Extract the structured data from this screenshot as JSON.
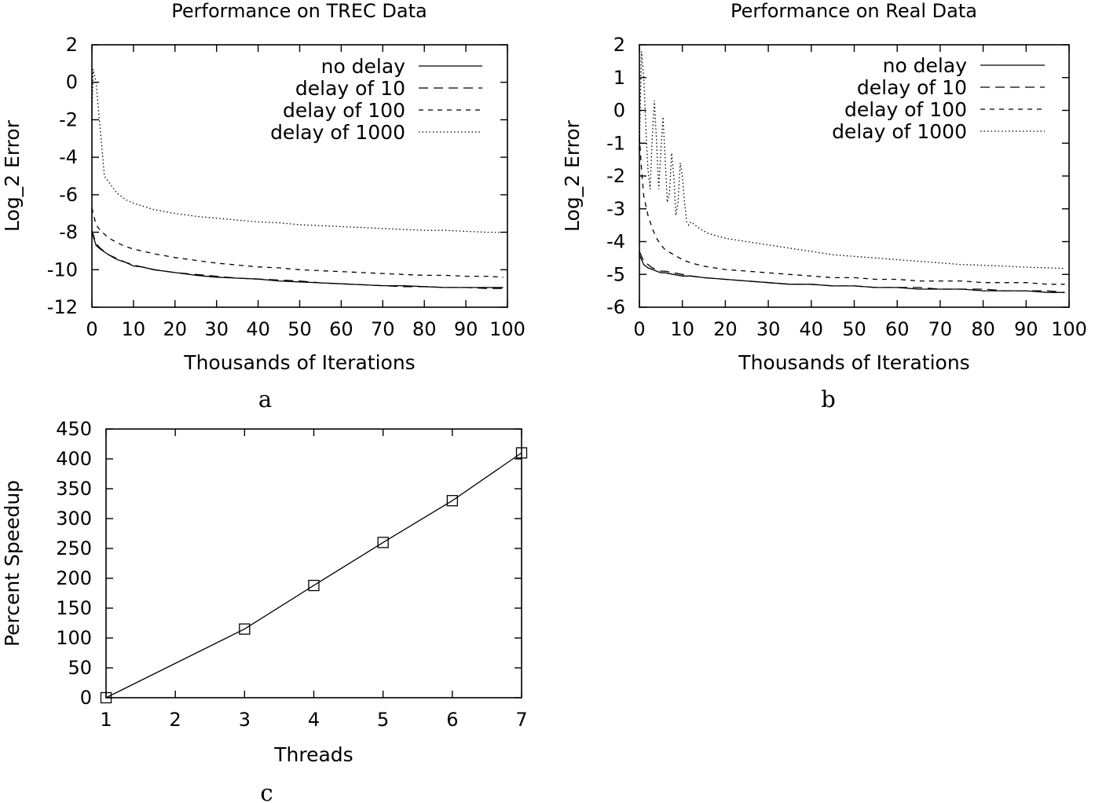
{
  "chart_data": [
    {
      "id": "a",
      "type": "line",
      "title": "Performance on TREC Data",
      "xlabel": "Thousands of Iterations",
      "ylabel": "Log_2 Error",
      "panel_letter": "a",
      "xlim": [
        0,
        100
      ],
      "ylim": [
        -12,
        2
      ],
      "xticks": [
        0,
        10,
        20,
        30,
        40,
        50,
        60,
        70,
        80,
        90,
        100
      ],
      "yticks": [
        -12,
        -10,
        -8,
        -6,
        -4,
        -2,
        0,
        2
      ],
      "grid": false,
      "legend_position": "top-right",
      "series": [
        {
          "name": "no delay",
          "dash": "solid",
          "x": [
            0,
            1,
            2,
            4,
            6,
            8,
            10,
            12,
            15,
            20,
            25,
            30,
            35,
            40,
            45,
            50,
            55,
            60,
            65,
            70,
            75,
            80,
            85,
            90,
            95,
            99
          ],
          "y": [
            -8.0,
            -8.7,
            -8.9,
            -9.2,
            -9.45,
            -9.6,
            -9.8,
            -9.85,
            -10.0,
            -10.15,
            -10.3,
            -10.4,
            -10.45,
            -10.5,
            -10.6,
            -10.65,
            -10.7,
            -10.75,
            -10.8,
            -10.85,
            -10.85,
            -10.9,
            -10.95,
            -10.95,
            -10.95,
            -10.95
          ]
        },
        {
          "name": "delay of 10",
          "dash": "long-dash",
          "x": [
            0,
            1,
            2,
            4,
            6,
            8,
            10,
            12,
            15,
            20,
            25,
            30,
            35,
            40,
            45,
            50,
            55,
            60,
            65,
            70,
            75,
            80,
            85,
            90,
            95,
            99
          ],
          "y": [
            -7.9,
            -8.6,
            -8.85,
            -9.2,
            -9.4,
            -9.6,
            -9.75,
            -9.85,
            -10.0,
            -10.15,
            -10.25,
            -10.35,
            -10.45,
            -10.5,
            -10.55,
            -10.6,
            -10.7,
            -10.75,
            -10.8,
            -10.85,
            -10.9,
            -10.9,
            -10.95,
            -10.95,
            -11.0,
            -11.0
          ]
        },
        {
          "name": "delay of 100",
          "dash": "short-dash",
          "x": [
            0,
            1,
            2,
            4,
            6,
            8,
            10,
            15,
            20,
            25,
            30,
            35,
            40,
            45,
            50,
            55,
            60,
            65,
            70,
            75,
            80,
            85,
            90,
            95,
            99
          ],
          "y": [
            -6.7,
            -7.6,
            -7.9,
            -8.3,
            -8.55,
            -8.75,
            -8.9,
            -9.15,
            -9.35,
            -9.5,
            -9.65,
            -9.75,
            -9.85,
            -9.9,
            -10.0,
            -10.05,
            -10.1,
            -10.15,
            -10.2,
            -10.25,
            -10.3,
            -10.3,
            -10.35,
            -10.35,
            -10.4
          ]
        },
        {
          "name": "delay of 1000",
          "dash": "dotted",
          "x": [
            0,
            0.3,
            1,
            2,
            3,
            4,
            6,
            8,
            10,
            15,
            20,
            25,
            30,
            35,
            40,
            45,
            50,
            55,
            60,
            65,
            70,
            75,
            80,
            85,
            90,
            95,
            99
          ],
          "y": [
            -2.0,
            0.7,
            0.0,
            -2.5,
            -5.0,
            -5.3,
            -5.9,
            -6.25,
            -6.45,
            -6.8,
            -7.0,
            -7.15,
            -7.25,
            -7.35,
            -7.45,
            -7.5,
            -7.6,
            -7.65,
            -7.7,
            -7.75,
            -7.8,
            -7.85,
            -7.9,
            -7.9,
            -7.95,
            -8.0,
            -8.0
          ]
        }
      ]
    },
    {
      "id": "b",
      "type": "line",
      "title": "Performance on Real Data",
      "xlabel": "Thousands of Iterations",
      "ylabel": "Log_2 Error",
      "panel_letter": "b",
      "xlim": [
        0,
        100
      ],
      "ylim": [
        -6,
        2
      ],
      "xticks": [
        0,
        10,
        20,
        30,
        40,
        50,
        60,
        70,
        80,
        90,
        100
      ],
      "yticks": [
        -6,
        -5,
        -4,
        -3,
        -2,
        -1,
        0,
        1,
        2
      ],
      "grid": false,
      "legend_position": "top-right",
      "series": [
        {
          "name": "no delay",
          "dash": "solid",
          "x": [
            0,
            1,
            2,
            3,
            4,
            5,
            6,
            8,
            10,
            12,
            15,
            20,
            25,
            30,
            35,
            40,
            45,
            50,
            55,
            60,
            65,
            70,
            75,
            80,
            85,
            90,
            95,
            99
          ],
          "y": [
            -4.4,
            -4.7,
            -4.8,
            -4.85,
            -4.9,
            -4.95,
            -4.95,
            -5.0,
            -5.05,
            -5.05,
            -5.1,
            -5.15,
            -5.2,
            -5.25,
            -5.3,
            -5.3,
            -5.35,
            -5.35,
            -5.4,
            -5.4,
            -5.45,
            -5.45,
            -5.45,
            -5.5,
            -5.5,
            -5.5,
            -5.55,
            -5.55
          ]
        },
        {
          "name": "delay of 10",
          "dash": "long-dash",
          "x": [
            0,
            1,
            2,
            3,
            4,
            5,
            6,
            8,
            10,
            12,
            15,
            20,
            25,
            30,
            35,
            40,
            45,
            50,
            55,
            60,
            65,
            70,
            75,
            80,
            85,
            90,
            95,
            99
          ],
          "y": [
            -4.3,
            -4.6,
            -4.7,
            -4.8,
            -4.85,
            -4.9,
            -4.9,
            -4.95,
            -5.0,
            -5.05,
            -5.1,
            -5.15,
            -5.2,
            -5.25,
            -5.3,
            -5.3,
            -5.35,
            -5.35,
            -5.4,
            -5.4,
            -5.4,
            -5.45,
            -5.45,
            -5.45,
            -5.5,
            -5.5,
            -5.5,
            -5.55
          ]
        },
        {
          "name": "delay of 100",
          "dash": "short-dash",
          "x": [
            0,
            0.5,
            1,
            2,
            3,
            4,
            5,
            6,
            8,
            10,
            12,
            15,
            20,
            25,
            30,
            35,
            40,
            45,
            50,
            55,
            60,
            65,
            70,
            75,
            80,
            85,
            90,
            95,
            99
          ],
          "y": [
            -0.8,
            -1.8,
            -2.6,
            -3.2,
            -3.6,
            -3.9,
            -4.1,
            -4.25,
            -4.4,
            -4.55,
            -4.65,
            -4.75,
            -4.85,
            -4.9,
            -4.95,
            -5.0,
            -5.05,
            -5.1,
            -5.1,
            -5.15,
            -5.15,
            -5.2,
            -5.2,
            -5.2,
            -5.25,
            -5.25,
            -5.25,
            -5.3,
            -5.3
          ]
        },
        {
          "name": "delay of 1000",
          "dash": "dotted",
          "x": [
            0,
            0.5,
            1,
            1.5,
            2,
            2.5,
            3,
            3.5,
            4,
            4.5,
            5,
            5.5,
            6,
            6.5,
            7,
            7.5,
            8,
            8.5,
            9,
            9.5,
            10,
            10.5,
            11,
            11.5,
            12,
            14,
            16,
            20,
            25,
            30,
            35,
            40,
            45,
            50,
            55,
            60,
            65,
            70,
            75,
            80,
            85,
            90,
            95,
            99
          ],
          "y": [
            -1.0,
            1.8,
            1.0,
            -0.5,
            -1.8,
            -2.4,
            -0.8,
            0.3,
            -1.0,
            -2.4,
            -1.2,
            -0.2,
            -1.5,
            -2.8,
            -2.5,
            -1.3,
            -2.0,
            -3.2,
            -2.8,
            -1.6,
            -2.0,
            -2.8,
            -3.4,
            -3.5,
            -3.4,
            -3.6,
            -3.75,
            -3.9,
            -4.0,
            -4.1,
            -4.2,
            -4.3,
            -4.4,
            -4.45,
            -4.5,
            -4.55,
            -4.6,
            -4.65,
            -4.7,
            -4.72,
            -4.75,
            -4.78,
            -4.8,
            -4.82
          ]
        }
      ]
    },
    {
      "id": "c",
      "type": "line",
      "title": "",
      "xlabel": "Threads",
      "ylabel": "Percent Speedup",
      "panel_letter": "c",
      "xlim": [
        1,
        7
      ],
      "ylim": [
        0,
        450
      ],
      "xticks": [
        1,
        2,
        3,
        4,
        5,
        6,
        7
      ],
      "yticks": [
        0,
        50,
        100,
        150,
        200,
        250,
        300,
        350,
        400,
        450
      ],
      "grid": false,
      "markers": "open-square",
      "series": [
        {
          "dash": "solid",
          "x": [
            1,
            3,
            4,
            5,
            6,
            7
          ],
          "y": [
            0,
            115,
            188,
            260,
            330,
            410
          ]
        }
      ]
    }
  ]
}
